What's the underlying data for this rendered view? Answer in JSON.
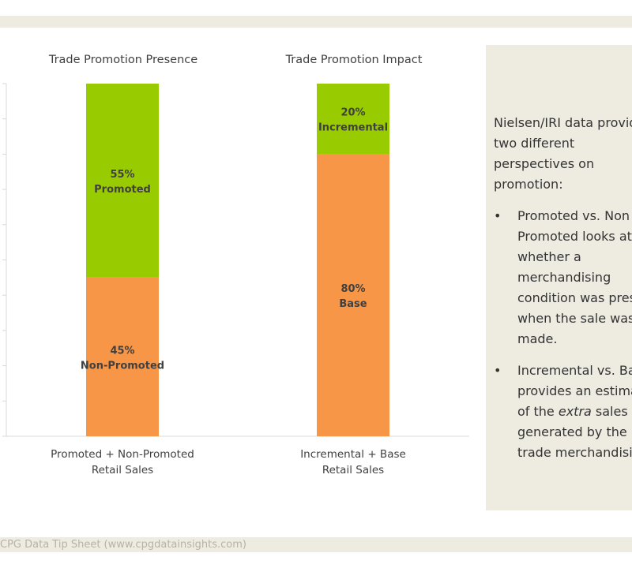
{
  "footer": {
    "source": "CPG Data Tip Sheet (www.cpgdatainsights.com)"
  },
  "panel": {
    "intro": "Nielsen/IRI data provides two different perspectives on promotion:",
    "bullets": [
      {
        "marker": "•",
        "text": "Promoted vs. Non Promoted looks at whether a merchandising condition was present when the sale was made."
      },
      {
        "marker": "•",
        "pre": "Incremental vs. Base provides an estimate of the ",
        "em": "extra",
        "post": " sales generated by the trade merchandising."
      }
    ]
  },
  "chart_data": {
    "type": "bar",
    "stacked": true,
    "ylim": [
      0,
      100
    ],
    "grid": false,
    "charts": [
      {
        "title": "Trade Promotion Presence",
        "category": "Promoted + Non-Promoted Retail Sales",
        "category_lines": [
          "Promoted + Non-Promoted",
          "Retail Sales"
        ],
        "segments": [
          {
            "name": "Non-Promoted",
            "value": 45,
            "label": "45%",
            "color": "#f79646"
          },
          {
            "name": "Promoted",
            "value": 55,
            "label": "55%",
            "color": "#99cc00"
          }
        ]
      },
      {
        "title": "Trade Promotion Impact",
        "category": "Incremental + Base Retail Sales",
        "category_lines": [
          "Incremental + Base",
          "Retail Sales"
        ],
        "segments": [
          {
            "name": "Base",
            "value": 80,
            "label": "80%",
            "color": "#f79646"
          },
          {
            "name": "Incremental",
            "value": 20,
            "label": "20%",
            "color": "#99cc00"
          }
        ]
      }
    ]
  }
}
